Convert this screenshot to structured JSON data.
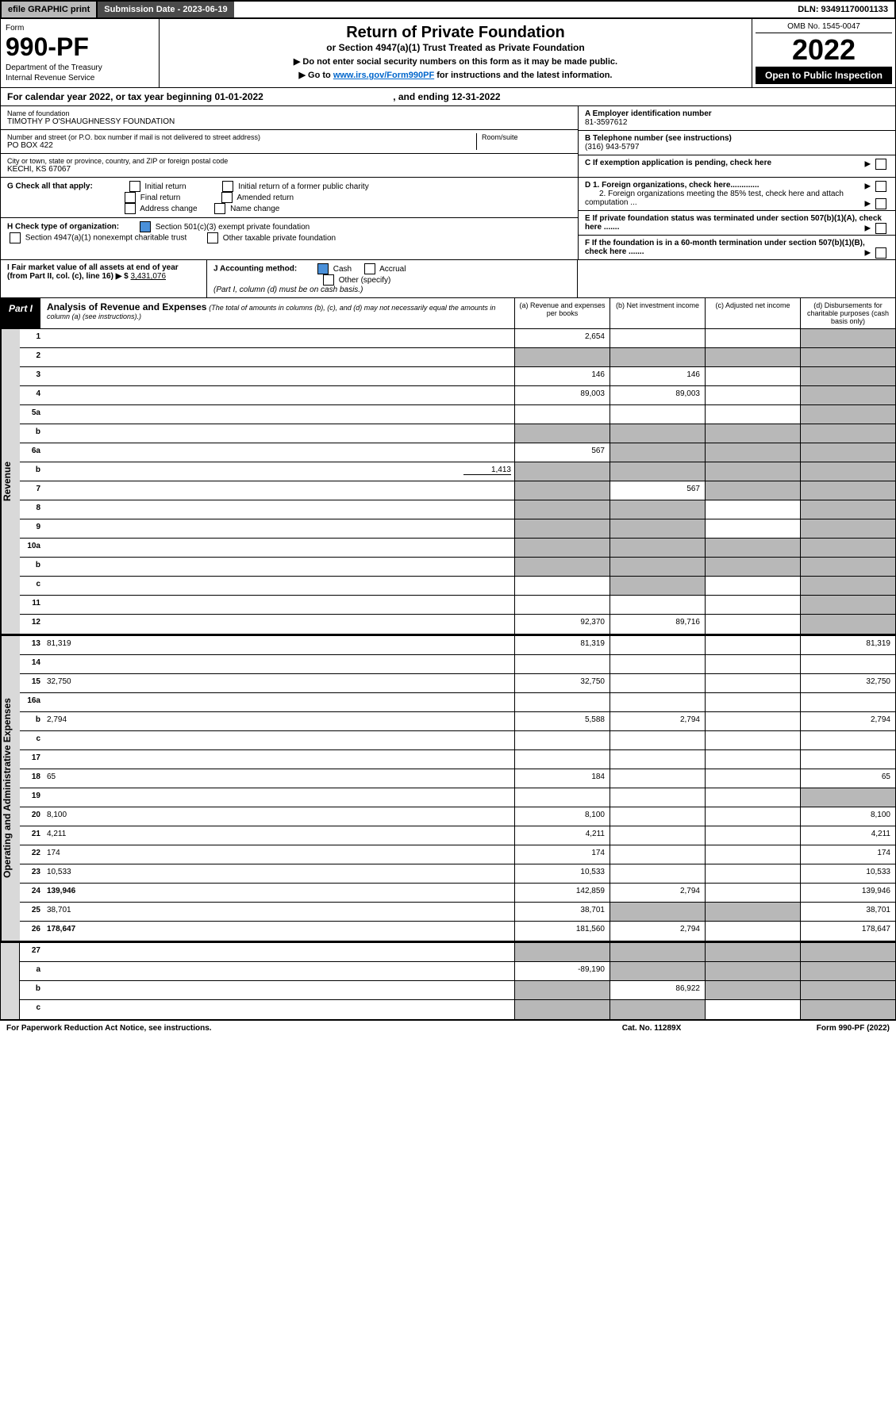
{
  "topbar": {
    "efile": "efile GRAPHIC print",
    "submission": "Submission Date - 2023-06-19",
    "dln": "DLN: 93491170001133"
  },
  "header": {
    "form_label": "Form",
    "form_no": "990-PF",
    "dept1": "Department of the Treasury",
    "dept2": "Internal Revenue Service",
    "title": "Return of Private Foundation",
    "subtitle": "or Section 4947(a)(1) Trust Treated as Private Foundation",
    "note1": "▶ Do not enter social security numbers on this form as it may be made public.",
    "note2_pre": "▶ Go to ",
    "note2_link": "www.irs.gov/Form990PF",
    "note2_post": " for instructions and the latest information.",
    "omb": "OMB No. 1545-0047",
    "year": "2022",
    "open": "Open to Public Inspection"
  },
  "calyear": {
    "text_pre": "For calendar year 2022, or tax year beginning ",
    "begin": "01-01-2022",
    "text_mid": ", and ending ",
    "end": "12-31-2022"
  },
  "info": {
    "name_label": "Name of foundation",
    "name": "TIMOTHY P O'SHAUGHNESSY FOUNDATION",
    "addr_label": "Number and street (or P.O. box number if mail is not delivered to street address)",
    "addr": "PO BOX 422",
    "room_label": "Room/suite",
    "city_label": "City or town, state or province, country, and ZIP or foreign postal code",
    "city": "KECHI, KS  67067",
    "ein_label": "A Employer identification number",
    "ein": "81-3597612",
    "phone_label": "B Telephone number (see instructions)",
    "phone": "(316) 943-5797",
    "c_label": "C If exemption application is pending, check here",
    "d1": "D 1. Foreign organizations, check here.............",
    "d2": "2. Foreign organizations meeting the 85% test, check here and attach computation ...",
    "e_label": "E  If private foundation status was terminated under section 507(b)(1)(A), check here .......",
    "f_label": "F  If the foundation is in a 60-month termination under section 507(b)(1)(B), check here .......",
    "g_label": "G Check all that apply:",
    "g_opts": [
      "Initial return",
      "Final return",
      "Address change",
      "Initial return of a former public charity",
      "Amended return",
      "Name change"
    ],
    "h_label": "H Check type of organization:",
    "h_501": "Section 501(c)(3) exempt private foundation",
    "h_4947": "Section 4947(a)(1) nonexempt charitable trust",
    "h_other": "Other taxable private foundation",
    "i_label": "I Fair market value of all assets at end of year (from Part II, col. (c), line 16) ▶ $",
    "i_val": "3,431,076",
    "j_label": "J Accounting method:",
    "j_cash": "Cash",
    "j_accrual": "Accrual",
    "j_other": "Other (specify)",
    "j_note": "(Part I, column (d) must be on cash basis.)"
  },
  "part1": {
    "badge": "Part I",
    "title": "Analysis of Revenue and Expenses",
    "note": "(The total of amounts in columns (b), (c), and (d) may not necessarily equal the amounts in column (a) (see instructions).)",
    "cols": {
      "a": "(a)  Revenue and expenses per books",
      "b": "(b)  Net investment income",
      "c": "(c)  Adjusted net income",
      "d": "(d)  Disbursements for charitable purposes (cash basis only)"
    }
  },
  "sides": {
    "rev": "Revenue",
    "exp": "Operating and Administrative Expenses"
  },
  "rows": [
    {
      "n": "1",
      "d": "",
      "a": "2,654",
      "b": "",
      "c": "",
      "shade": [
        "d"
      ]
    },
    {
      "n": "2",
      "d": "",
      "a": "",
      "b": "",
      "c": "",
      "shade": [
        "a",
        "b",
        "c",
        "d"
      ],
      "bold_parts": "not"
    },
    {
      "n": "3",
      "d": "",
      "a": "146",
      "b": "146",
      "c": "",
      "shade": [
        "d"
      ]
    },
    {
      "n": "4",
      "d": "",
      "a": "89,003",
      "b": "89,003",
      "c": "",
      "shade": [
        "d"
      ]
    },
    {
      "n": "5a",
      "d": "",
      "a": "",
      "b": "",
      "c": "",
      "shade": [
        "d"
      ]
    },
    {
      "n": "b",
      "d": "",
      "a": "",
      "b": "",
      "c": "",
      "shade": [
        "a",
        "b",
        "c",
        "d"
      ],
      "short": true
    },
    {
      "n": "6a",
      "d": "",
      "a": "567",
      "b": "",
      "c": "",
      "shade": [
        "b",
        "c",
        "d"
      ]
    },
    {
      "n": "b",
      "d": "",
      "extra": "1,413",
      "a": "",
      "b": "",
      "c": "",
      "shade": [
        "a",
        "b",
        "c",
        "d"
      ]
    },
    {
      "n": "7",
      "d": "",
      "a": "",
      "b": "567",
      "c": "",
      "shade": [
        "a",
        "c",
        "d"
      ]
    },
    {
      "n": "8",
      "d": "",
      "a": "",
      "b": "",
      "c": "",
      "shade": [
        "a",
        "b",
        "d"
      ]
    },
    {
      "n": "9",
      "d": "",
      "a": "",
      "b": "",
      "c": "",
      "shade": [
        "a",
        "b",
        "d"
      ]
    },
    {
      "n": "10a",
      "d": "",
      "a": "",
      "b": "",
      "c": "",
      "shade": [
        "a",
        "b",
        "c",
        "d"
      ],
      "short": true
    },
    {
      "n": "b",
      "d": "",
      "a": "",
      "b": "",
      "c": "",
      "shade": [
        "a",
        "b",
        "c",
        "d"
      ],
      "short": true
    },
    {
      "n": "c",
      "d": "",
      "a": "",
      "b": "",
      "c": "",
      "shade": [
        "b",
        "d"
      ]
    },
    {
      "n": "11",
      "d": "",
      "a": "",
      "b": "",
      "c": "",
      "shade": [
        "d"
      ]
    },
    {
      "n": "12",
      "d": "",
      "a": "92,370",
      "b": "89,716",
      "c": "",
      "shade": [
        "d"
      ],
      "bold": true
    }
  ],
  "exp_rows": [
    {
      "n": "13",
      "d": "81,319",
      "a": "81,319",
      "b": "",
      "c": ""
    },
    {
      "n": "14",
      "d": "",
      "a": "",
      "b": "",
      "c": ""
    },
    {
      "n": "15",
      "d": "32,750",
      "a": "32,750",
      "b": "",
      "c": ""
    },
    {
      "n": "16a",
      "d": "",
      "a": "",
      "b": "",
      "c": ""
    },
    {
      "n": "b",
      "d": "2,794",
      "a": "5,588",
      "b": "2,794",
      "c": ""
    },
    {
      "n": "c",
      "d": "",
      "a": "",
      "b": "",
      "c": ""
    },
    {
      "n": "17",
      "d": "",
      "a": "",
      "b": "",
      "c": ""
    },
    {
      "n": "18",
      "d": "65",
      "a": "184",
      "b": "",
      "c": ""
    },
    {
      "n": "19",
      "d": "",
      "a": "",
      "b": "",
      "c": "",
      "shade": [
        "d"
      ]
    },
    {
      "n": "20",
      "d": "8,100",
      "a": "8,100",
      "b": "",
      "c": ""
    },
    {
      "n": "21",
      "d": "4,211",
      "a": "4,211",
      "b": "",
      "c": ""
    },
    {
      "n": "22",
      "d": "174",
      "a": "174",
      "b": "",
      "c": ""
    },
    {
      "n": "23",
      "d": "10,533",
      "a": "10,533",
      "b": "",
      "c": ""
    },
    {
      "n": "24",
      "d": "139,946",
      "a": "142,859",
      "b": "2,794",
      "c": "",
      "bold": true
    },
    {
      "n": "25",
      "d": "38,701",
      "a": "38,701",
      "b": "",
      "c": "",
      "shade": [
        "b",
        "c"
      ]
    },
    {
      "n": "26",
      "d": "178,647",
      "a": "181,560",
      "b": "2,794",
      "c": "",
      "bold": true
    }
  ],
  "bottom_rows": [
    {
      "n": "27",
      "d": "",
      "a": "",
      "b": "",
      "c": "",
      "shade": [
        "a",
        "b",
        "c",
        "d"
      ]
    },
    {
      "n": "a",
      "d": "",
      "a": "-89,190",
      "b": "",
      "c": "",
      "shade": [
        "b",
        "c",
        "d"
      ],
      "bold": true
    },
    {
      "n": "b",
      "d": "",
      "a": "",
      "b": "86,922",
      "c": "",
      "shade": [
        "a",
        "c",
        "d"
      ],
      "bold": true
    },
    {
      "n": "c",
      "d": "",
      "a": "",
      "b": "",
      "c": "",
      "shade": [
        "a",
        "b",
        "d"
      ],
      "bold": true
    }
  ],
  "footer": {
    "left": "For Paperwork Reduction Act Notice, see instructions.",
    "mid": "Cat. No. 11289X",
    "right": "Form 990-PF (2022)"
  }
}
